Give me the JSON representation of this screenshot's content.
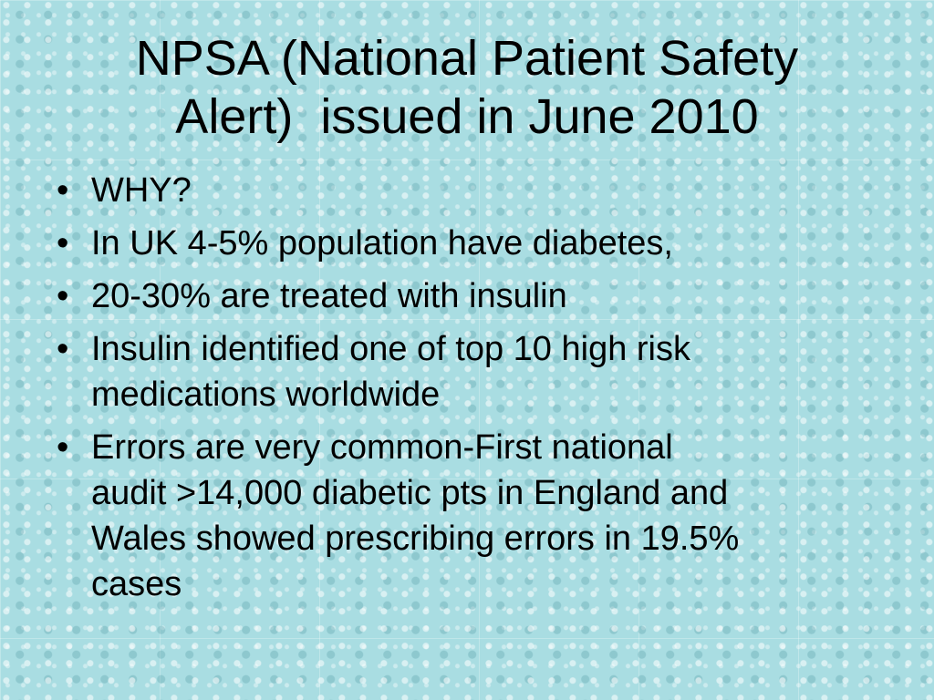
{
  "header": {
    "title_lines": [
      "NPSA (National Patient Safety",
      "Alert)  issued in June 2010"
    ]
  },
  "bullets": [
    {
      "lines": [
        "WHY?"
      ]
    },
    {
      "lines": [
        "In UK 4-5% population have diabetes,"
      ]
    },
    {
      "lines": [
        "20-30% are treated with insulin"
      ]
    },
    {
      "lines": [
        "Insulin identified one of top 10 high risk",
        "medications worldwide"
      ]
    },
    {
      "lines": [
        "Errors are very common-First national",
        "audit >14,000 diabetic pts in England and",
        "Wales showed prescribing errors in 19.5%",
        "cases"
      ]
    }
  ]
}
